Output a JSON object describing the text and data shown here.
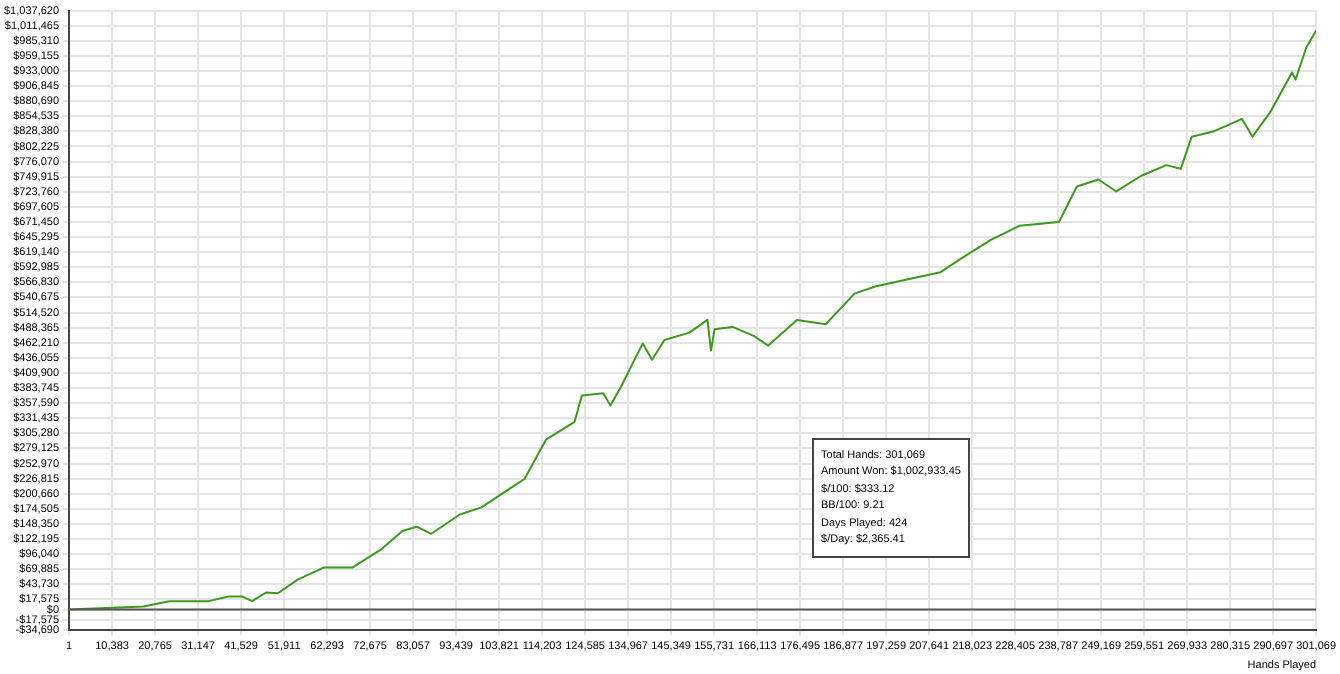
{
  "chart_data": {
    "type": "line",
    "xlabel": "Hands Played",
    "x": [
      1,
      17980,
      24180,
      33720,
      38500,
      41830,
      44220,
      47560,
      50420,
      55190,
      61440,
      68360,
      75270,
      80470,
      83950,
      87440,
      94350,
      99550,
      104750,
      109950,
      115150,
      122060,
      123780,
      128980,
      130700,
      133320,
      136760,
      138520,
      140760,
      143720,
      149780,
      154120,
      154980,
      155840,
      160180,
      165380,
      168810,
      175730,
      182690,
      189610,
      194810,
      202590,
      210410,
      215610,
      222520,
      229440,
      238980,
      239840,
      243320,
      248520,
      252810,
      258870,
      264930,
      268410,
      271030,
      276230,
      283150,
      285720,
      290060,
      295260,
      296120,
      298690,
      301069
    ],
    "series": [
      {
        "color": "#3c9a1e",
        "values": [
          0,
          5400,
          14600,
          14600,
          22500,
          22500,
          14600,
          29600,
          28200,
          52000,
          72800,
          72800,
          103800,
          136100,
          143600,
          131300,
          164700,
          177000,
          201700,
          226200,
          294300,
          325200,
          370800,
          374600,
          353500,
          386900,
          436500,
          461000,
          432700,
          467100,
          479700,
          501800,
          448700,
          485800,
          489600,
          473600,
          457300,
          501800,
          494300,
          547400,
          560000,
          572200,
          584500,
          609300,
          640300,
          664800,
          671200,
          683500,
          732800,
          745100,
          724300,
          751500,
          769900,
          763800,
          819200,
          828100,
          850200,
          819200,
          862500,
          930500,
          918200,
          973700,
          1002933
        ]
      }
    ],
    "xlim": [
      1,
      301069
    ],
    "xticks": [
      1,
      {
        "value": 10383,
        "label": "10,383"
      },
      {
        "value": 20765,
        "label": "20,765"
      },
      {
        "value": 31147,
        "label": "31,147"
      },
      {
        "value": 41529,
        "label": "41,529"
      },
      {
        "value": 51911,
        "label": "51,911"
      },
      {
        "value": 62293,
        "label": "62,293"
      },
      {
        "value": 72675,
        "label": "72,675"
      },
      {
        "value": 83057,
        "label": "83,057"
      },
      {
        "value": 93439,
        "label": "93,439"
      },
      {
        "value": 103821,
        "label": "103,821"
      },
      {
        "value": 114203,
        "label": "114,203"
      },
      {
        "value": 124585,
        "label": "124,585"
      },
      {
        "value": 134967,
        "label": "134,967"
      },
      {
        "value": 145349,
        "label": "145,349"
      },
      {
        "value": 155731,
        "label": "155,731"
      },
      {
        "value": 166113,
        "label": "166,113"
      },
      {
        "value": 176495,
        "label": "176,495"
      },
      {
        "value": 186877,
        "label": "186,877"
      },
      {
        "value": 197259,
        "label": "197,259"
      },
      {
        "value": 207641,
        "label": "207,641"
      },
      {
        "value": 218023,
        "label": "218,023"
      },
      {
        "value": 228405,
        "label": "228,405"
      },
      {
        "value": 238787,
        "label": "238,787"
      },
      {
        "value": 249169,
        "label": "249,169"
      },
      {
        "value": 259551,
        "label": "259,551"
      },
      {
        "value": 269933,
        "label": "269,933"
      },
      {
        "value": 280315,
        "label": "280,315"
      },
      {
        "value": 290697,
        "label": "290,697"
      },
      {
        "value": 301069,
        "label": "301,069"
      }
    ],
    "ylim": [
      -34690,
      1037620
    ],
    "yticks": [
      {
        "value": -34690,
        "label": "-$34,690"
      },
      {
        "value": -17575,
        "label": "-$17,575"
      },
      {
        "value": 0,
        "label": "$0"
      },
      {
        "value": 17575,
        "label": "$17,575"
      },
      {
        "value": 43730,
        "label": "$43,730"
      },
      {
        "value": 69885,
        "label": "$69,885"
      },
      {
        "value": 96040,
        "label": "$96,040"
      },
      {
        "value": 122195,
        "label": "$122,195"
      },
      {
        "value": 148350,
        "label": "$148,350"
      },
      {
        "value": 174505,
        "label": "$174,505"
      },
      {
        "value": 200660,
        "label": "$200,660"
      },
      {
        "value": 226815,
        "label": "$226,815"
      },
      {
        "value": 252970,
        "label": "$252,970"
      },
      {
        "value": 279125,
        "label": "$279,125"
      },
      {
        "value": 305280,
        "label": "$305,280"
      },
      {
        "value": 331435,
        "label": "$331,435"
      },
      {
        "value": 357590,
        "label": "$357,590"
      },
      {
        "value": 383745,
        "label": "$383,745"
      },
      {
        "value": 409900,
        "label": "$409,900"
      },
      {
        "value": 436055,
        "label": "$436,055"
      },
      {
        "value": 462210,
        "label": "$462,210"
      },
      {
        "value": 488365,
        "label": "$488,365"
      },
      {
        "value": 514520,
        "label": "$514,520"
      },
      {
        "value": 540675,
        "label": "$540,675"
      },
      {
        "value": 566830,
        "label": "$566,830"
      },
      {
        "value": 592985,
        "label": "$592,985"
      },
      {
        "value": 619140,
        "label": "$619,140"
      },
      {
        "value": 645295,
        "label": "$645,295"
      },
      {
        "value": 671450,
        "label": "$671,450"
      },
      {
        "value": 697605,
        "label": "$697,605"
      },
      {
        "value": 723760,
        "label": "$723,760"
      },
      {
        "value": 749915,
        "label": "$749,915"
      },
      {
        "value": 776070,
        "label": "$776,070"
      },
      {
        "value": 802225,
        "label": "$802,225"
      },
      {
        "value": 828380,
        "label": "$828,380"
      },
      {
        "value": 854535,
        "label": "$854,535"
      },
      {
        "value": 880690,
        "label": "$880,690"
      },
      {
        "value": 906845,
        "label": "$906,845"
      },
      {
        "value": 933000,
        "label": "$933,000"
      },
      {
        "value": 959155,
        "label": "$959,155"
      },
      {
        "value": 985310,
        "label": "$985,310"
      },
      {
        "value": 1011465,
        "label": "$1,011,465"
      },
      {
        "value": 1037620,
        "label": "$1,037,620"
      }
    ],
    "ref_lines": [
      {
        "axis": "y",
        "value": 0,
        "color": "#555555"
      }
    ],
    "annotations": [
      "Total Hands: 301,069",
      "Amount Won: $1,002,933.45",
      "$/100: $333.12",
      "BB/100: 9.21",
      "Days Played: 424",
      "$/Day: $2,365.41"
    ],
    "grid": true,
    "legend": false,
    "marker": "none",
    "line_style": "solid"
  }
}
